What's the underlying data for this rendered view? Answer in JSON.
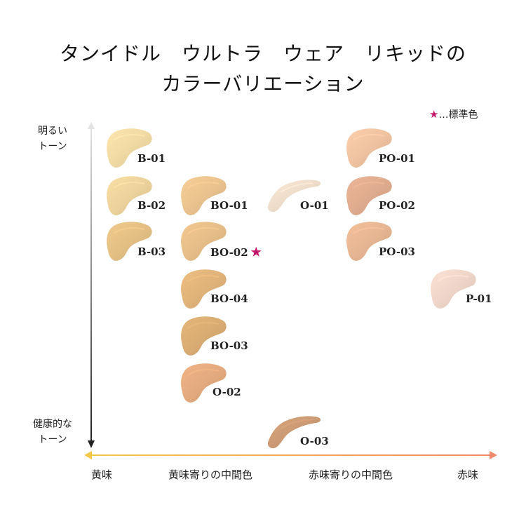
{
  "title": {
    "line1": "タンイドル　ウルトラ　ウェア　リキッドの",
    "line2": "カラーバリエーション"
  },
  "legend": {
    "star": "★",
    "text": "…標準色"
  },
  "y_axis": {
    "top_label_line1": "明るい",
    "top_label_line2": "トーン",
    "bottom_label_line1": "健康的な",
    "bottom_label_line2": "トーン"
  },
  "x_axis": {
    "labels": [
      "黄味",
      "黄味寄りの中間色",
      "赤味寄りの中間色",
      "赤味"
    ],
    "left_color": "#f2c84b",
    "right_color": "#ee8a6a"
  },
  "shades": [
    {
      "code": "B-01",
      "color": "#f0d9a3",
      "shape": "smudge"
    },
    {
      "code": "B-02",
      "color": "#ecd29b",
      "shape": "smudge"
    },
    {
      "code": "B-03",
      "color": "#e3bf84",
      "shape": "smudge"
    },
    {
      "code": "BO-01",
      "color": "#e9c28d",
      "shape": "smudge"
    },
    {
      "code": "BO-02",
      "color": "#e6bd88",
      "shape": "smudge",
      "standard": true,
      "mark": "★"
    },
    {
      "code": "BO-04",
      "color": "#e0b37a",
      "shape": "smudge"
    },
    {
      "code": "BO-03",
      "color": "#d9ac73",
      "shape": "smudge"
    },
    {
      "code": "O-02",
      "color": "#e3aa7e",
      "shape": "smudge"
    },
    {
      "code": "O-01",
      "color": "#eddcc9",
      "shape": "stroke"
    },
    {
      "code": "O-03",
      "color": "#cb9a74",
      "shape": "stroke"
    },
    {
      "code": "PO-01",
      "color": "#efc2a0",
      "shape": "smudge"
    },
    {
      "code": "PO-02",
      "color": "#dfab8e",
      "shape": "smudge"
    },
    {
      "code": "PO-03",
      "color": "#e6b592",
      "shape": "smudge"
    },
    {
      "code": "P-01",
      "color": "#eed5c8",
      "shape": "smudge"
    }
  ]
}
